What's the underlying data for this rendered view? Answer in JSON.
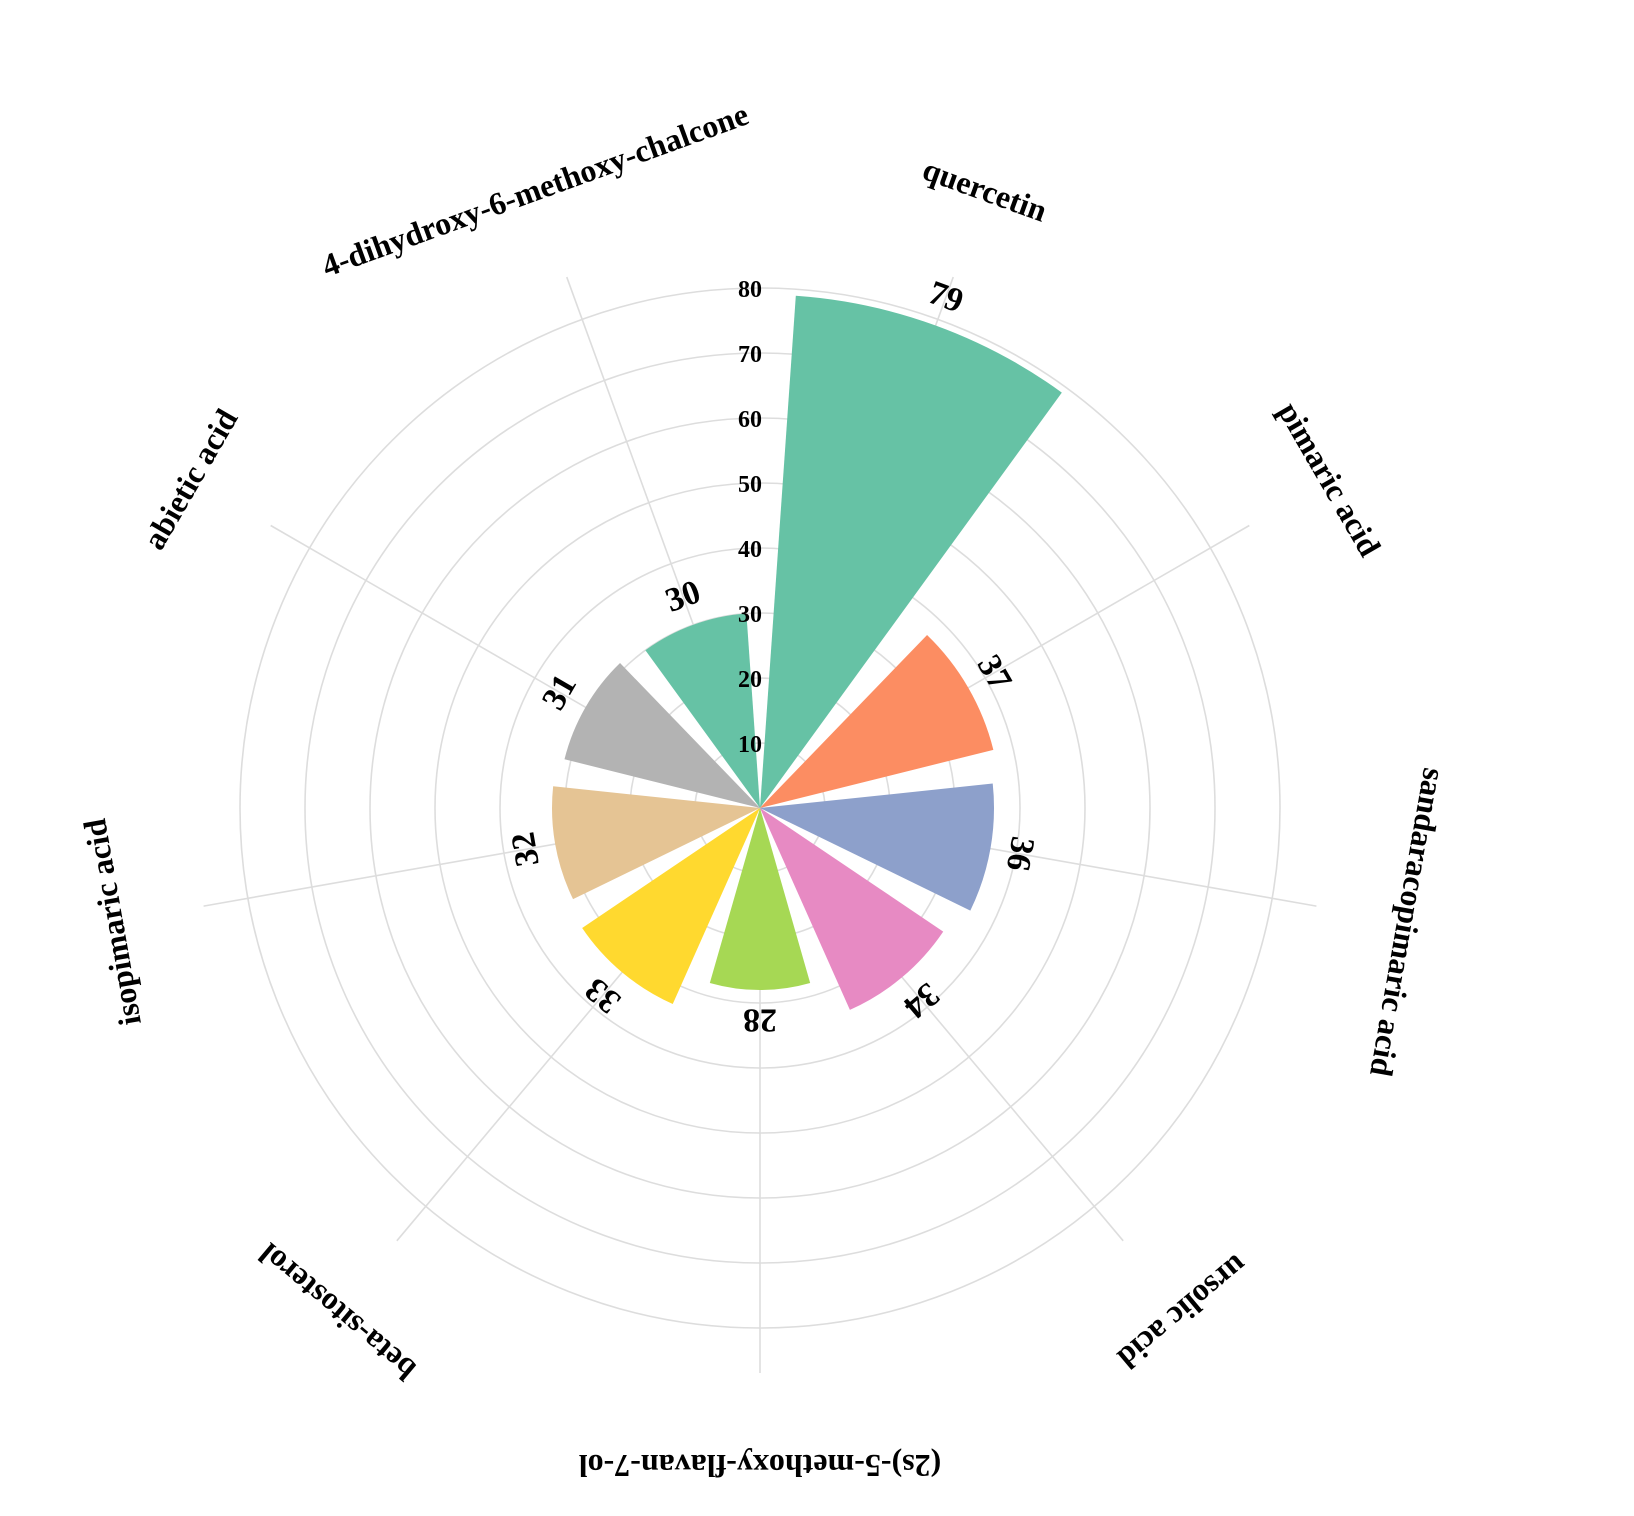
{
  "chart_data": {
    "type": "bar",
    "polar": true,
    "categories": [
      "quercetin",
      "pimaric acid",
      "sandaracopimaric acid",
      "ursolic acid",
      "(2s)-5-methoxy-flavan-7-ol",
      "beta-sitosterol",
      "isopimaric acid",
      "abietic acid",
      "4-dihydroxy-6-methoxy-chalcone"
    ],
    "values": [
      79,
      37,
      36,
      34,
      28,
      33,
      32,
      31,
      30
    ],
    "value_labels": [
      "79",
      "37",
      "36",
      "34",
      "28",
      "33",
      "32",
      "31",
      "30"
    ],
    "colors": [
      "#66c2a5",
      "#fc8d62",
      "#8da0cb",
      "#e78ac3",
      "#a6d854",
      "#ffd92f",
      "#e5c494",
      "#b3b3b3",
      "#66c2a5"
    ],
    "radial_ticks": [
      10,
      20,
      30,
      40,
      50,
      60,
      70,
      80
    ],
    "tick_labels": [
      "10",
      "20",
      "30",
      "40",
      "50",
      "60",
      "70",
      "80"
    ],
    "rmax": 80,
    "grid": true,
    "title": "",
    "legend": false
  }
}
